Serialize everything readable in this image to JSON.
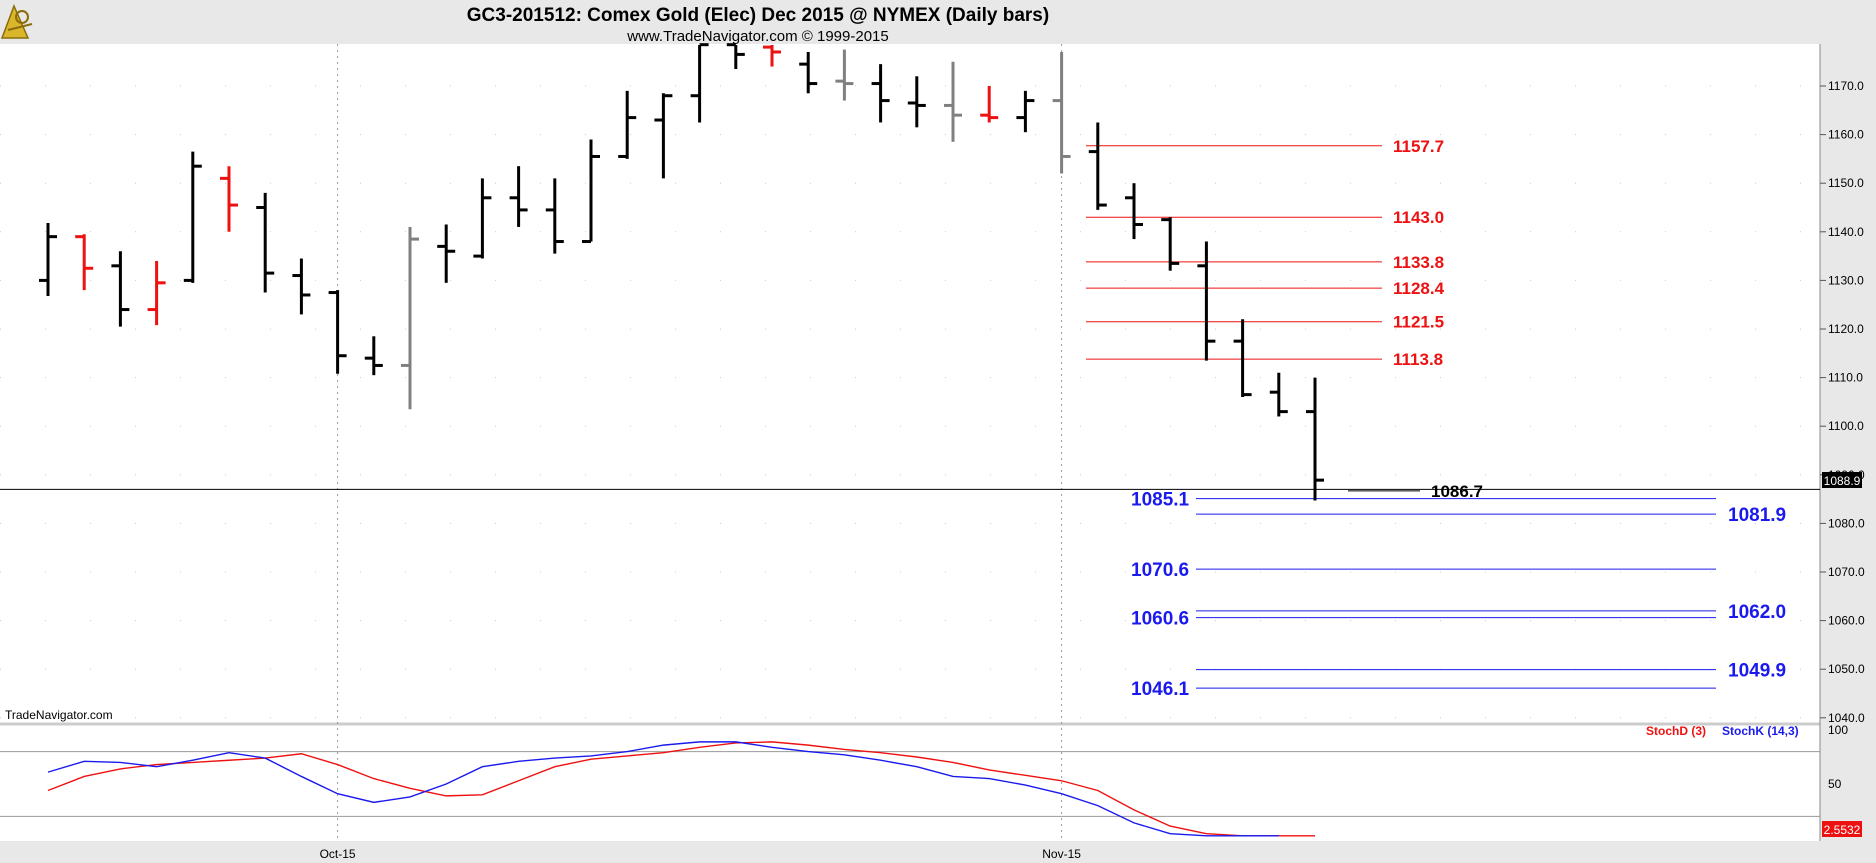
{
  "header": {
    "title": "GC3-201512:  Comex Gold (Elec) Dec 2015 @ NYMEX  (Daily bars)",
    "subtitle": "www.TradeNavigator.com © 1999-2015",
    "watermark": "TradeNavigator.com",
    "logo_icon": "trade-navigator-logo-icon"
  },
  "colors": {
    "up_bar": "#000000",
    "down_bar": "#ee1111",
    "neutral_bar": "#808080",
    "resistance": "#ee1111",
    "support": "#1a1aee",
    "stoch_d": "#ee1111",
    "stoch_k": "#1a1aee"
  },
  "chart_data": [
    {
      "type": "ohlc",
      "title": "GC3-201512:  Comex Gold (Elec) Dec 2015 @ NYMEX  (Daily bars)",
      "ylim": [
        1040,
        1180
      ],
      "y_ticks": [
        "1170.0",
        "1160.0",
        "1150.0",
        "1140.0",
        "1130.0",
        "1120.0",
        "1110.0",
        "1100.0",
        "1090.0",
        "1080.0",
        "1070.0",
        "1060.0",
        "1050.0",
        "1040.0"
      ],
      "x_ticks": [
        {
          "index": 8,
          "label": "Oct-15"
        },
        {
          "index": 28,
          "label": "Nov-15"
        }
      ],
      "last_price": "1088.9",
      "bars": [
        {
          "o": 1130.0,
          "h": 1141.8,
          "l": 1126.8,
          "c": 1139.0,
          "color": "black"
        },
        {
          "o": 1139.0,
          "h": 1139.5,
          "l": 1128.0,
          "c": 1132.5,
          "color": "red"
        },
        {
          "o": 1133.0,
          "h": 1136.0,
          "l": 1120.5,
          "c": 1124.0,
          "color": "black"
        },
        {
          "o": 1124.0,
          "h": 1134.0,
          "l": 1120.8,
          "c": 1129.5,
          "color": "red"
        },
        {
          "o": 1130.0,
          "h": 1156.5,
          "l": 1129.5,
          "c": 1153.5,
          "color": "black"
        },
        {
          "o": 1151.0,
          "h": 1153.5,
          "l": 1140.0,
          "c": 1145.5,
          "color": "red"
        },
        {
          "o": 1145.0,
          "h": 1148.0,
          "l": 1127.5,
          "c": 1131.5,
          "color": "black"
        },
        {
          "o": 1131.0,
          "h": 1134.5,
          "l": 1123.0,
          "c": 1127.0,
          "color": "black"
        },
        {
          "o": 1127.5,
          "h": 1128.0,
          "l": 1110.8,
          "c": 1114.5,
          "color": "black"
        },
        {
          "o": 1114.0,
          "h": 1118.5,
          "l": 1110.5,
          "c": 1112.5,
          "color": "black"
        },
        {
          "o": 1112.5,
          "h": 1141.0,
          "l": 1103.5,
          "c": 1138.5,
          "color": "gray"
        },
        {
          "o": 1137.0,
          "h": 1141.5,
          "l": 1129.5,
          "c": 1136.0,
          "color": "black"
        },
        {
          "o": 1135.0,
          "h": 1151.0,
          "l": 1134.5,
          "c": 1147.0,
          "color": "black"
        },
        {
          "o": 1147.0,
          "h": 1153.5,
          "l": 1141.0,
          "c": 1144.5,
          "color": "black"
        },
        {
          "o": 1144.5,
          "h": 1151.0,
          "l": 1135.5,
          "c": 1138.0,
          "color": "black"
        },
        {
          "o": 1138.0,
          "h": 1159.0,
          "l": 1138.0,
          "c": 1155.5,
          "color": "black"
        },
        {
          "o": 1155.5,
          "h": 1169.0,
          "l": 1155.0,
          "c": 1163.5,
          "color": "black"
        },
        {
          "o": 1163.0,
          "h": 1168.5,
          "l": 1151.0,
          "c": 1168.0,
          "color": "black"
        },
        {
          "o": 1168.0,
          "h": 1181.0,
          "l": 1162.5,
          "c": 1178.5,
          "color": "black"
        },
        {
          "o": 1178.5,
          "h": 1180.0,
          "l": 1173.5,
          "c": 1176.5,
          "color": "black"
        },
        {
          "o": 1178.0,
          "h": 1179.5,
          "l": 1174.0,
          "c": 1177.0,
          "color": "red"
        },
        {
          "o": 1174.5,
          "h": 1177.0,
          "l": 1168.5,
          "c": 1170.5,
          "color": "black"
        },
        {
          "o": 1171.0,
          "h": 1177.5,
          "l": 1167.0,
          "c": 1170.5,
          "color": "gray"
        },
        {
          "o": 1170.5,
          "h": 1174.5,
          "l": 1162.5,
          "c": 1167.0,
          "color": "black"
        },
        {
          "o": 1166.5,
          "h": 1172.0,
          "l": 1161.5,
          "c": 1166.0,
          "color": "black"
        },
        {
          "o": 1166.0,
          "h": 1175.0,
          "l": 1158.5,
          "c": 1164.0,
          "color": "gray"
        },
        {
          "o": 1164.0,
          "h": 1170.0,
          "l": 1162.5,
          "c": 1163.5,
          "color": "red"
        },
        {
          "o": 1163.5,
          "h": 1169.0,
          "l": 1160.5,
          "c": 1167.0,
          "color": "black"
        },
        {
          "o": 1167.0,
          "h": 1177.0,
          "l": 1152.0,
          "c": 1155.5,
          "color": "gray"
        },
        {
          "o": 1156.5,
          "h": 1162.5,
          "l": 1144.5,
          "c": 1145.5,
          "color": "black"
        },
        {
          "o": 1147.0,
          "h": 1150.0,
          "l": 1138.5,
          "c": 1141.5,
          "color": "black"
        },
        {
          "o": 1142.5,
          "h": 1143.0,
          "l": 1132.0,
          "c": 1133.5,
          "color": "black"
        },
        {
          "o": 1133.0,
          "h": 1138.0,
          "l": 1113.5,
          "c": 1117.5,
          "color": "black"
        },
        {
          "o": 1117.5,
          "h": 1122.0,
          "l": 1106.0,
          "c": 1106.5,
          "color": "black"
        },
        {
          "o": 1107.0,
          "h": 1111.0,
          "l": 1102.0,
          "c": 1103.0,
          "color": "black"
        },
        {
          "o": 1103.0,
          "h": 1110.0,
          "l": 1084.7,
          "c": 1088.9,
          "color": "black"
        }
      ],
      "resistance_levels": [
        {
          "value": 1157.7,
          "label": "1157.7"
        },
        {
          "value": 1143.0,
          "label": "1143.0"
        },
        {
          "value": 1133.8,
          "label": "1133.8"
        },
        {
          "value": 1128.4,
          "label": "1128.4"
        },
        {
          "value": 1121.5,
          "label": "1121.5"
        },
        {
          "value": 1113.8,
          "label": "1113.8"
        }
      ],
      "support_levels_left": [
        {
          "value": 1085.1,
          "label": "1085.1"
        },
        {
          "value": 1070.6,
          "label": "1070.6"
        },
        {
          "value": 1060.6,
          "label": "1060.6"
        },
        {
          "value": 1046.1,
          "label": "1046.1"
        }
      ],
      "support_levels_right": [
        {
          "value": 1081.9,
          "label": "1081.9"
        },
        {
          "value": 1062.0,
          "label": "1062.0"
        },
        {
          "value": 1049.9,
          "label": "1049.9"
        }
      ],
      "black_level": {
        "value": 1086.7,
        "label": "1086.7"
      },
      "horizontal_line": 1087.0
    },
    {
      "type": "line",
      "ylim": [
        0,
        100
      ],
      "y_ticks": [
        "100",
        "50"
      ],
      "last_value": "2.5532",
      "bands": [
        80,
        20
      ],
      "series": [
        {
          "name": "StochD (3)",
          "color": "#ee1111",
          "values": [
            44,
            57,
            64,
            68,
            70,
            72,
            74,
            78,
            68,
            55,
            46,
            39,
            40,
            53,
            66,
            73,
            76,
            79,
            84,
            88,
            89,
            86,
            82,
            79,
            75,
            70,
            63,
            58,
            53,
            44,
            26,
            11,
            4,
            2,
            2,
            2
          ]
        },
        {
          "name": "StochK (14,3)",
          "color": "#1a1aee",
          "values": [
            61,
            71,
            70,
            66,
            72,
            79,
            74,
            57,
            41,
            33,
            38,
            50,
            66,
            71,
            74,
            76,
            80,
            86,
            89,
            89,
            84,
            80,
            77,
            72,
            66,
            57,
            55,
            49,
            41,
            30,
            14,
            4,
            2,
            2,
            2,
            null
          ]
        }
      ]
    }
  ]
}
